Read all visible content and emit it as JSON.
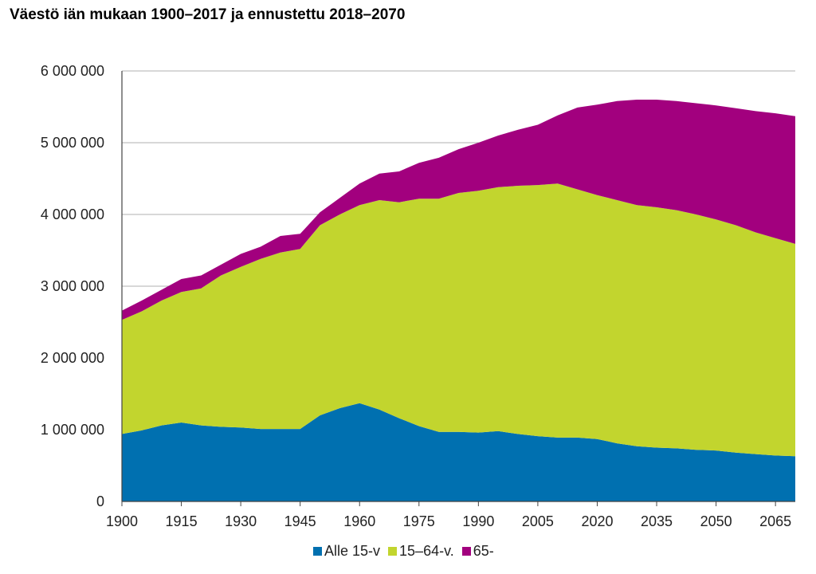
{
  "chart_data": {
    "type": "area",
    "stacked": true,
    "title": "Väestö iän mukaan 1900–2017 ja ennustettu 2018–2070",
    "xlabel": "",
    "ylabel": "",
    "xlim": [
      1900,
      2070
    ],
    "ylim": [
      0,
      6000000
    ],
    "grid": true,
    "legend_position": "bottom",
    "x_ticks": [
      "1900",
      "1915",
      "1930",
      "1945",
      "1960",
      "1975",
      "1990",
      "2005",
      "2020",
      "2035",
      "2050",
      "2065"
    ],
    "y_ticks": [
      "0",
      "1 000 000",
      "2 000 000",
      "3 000 000",
      "4 000 000",
      "5 000 000",
      "6 000 000"
    ],
    "x": [
      1900,
      1905,
      1910,
      1915,
      1920,
      1925,
      1930,
      1935,
      1940,
      1945,
      1950,
      1955,
      1960,
      1965,
      1970,
      1975,
      1980,
      1985,
      1990,
      1995,
      2000,
      2005,
      2010,
      2015,
      2020,
      2025,
      2030,
      2035,
      2040,
      2045,
      2050,
      2055,
      2060,
      2065,
      2070
    ],
    "series": [
      {
        "name": "Alle 15-v",
        "color": "#0070b0",
        "values": [
          940000,
          990000,
          1060000,
          1100000,
          1060000,
          1040000,
          1030000,
          1010000,
          1010000,
          1010000,
          1200000,
          1300000,
          1370000,
          1280000,
          1160000,
          1050000,
          970000,
          970000,
          960000,
          980000,
          940000,
          910000,
          890000,
          890000,
          870000,
          810000,
          770000,
          750000,
          740000,
          720000,
          710000,
          680000,
          660000,
          640000,
          630000
        ]
      },
      {
        "name": "15–64-v.",
        "color": "#c2d52e",
        "values": [
          1590000,
          1660000,
          1740000,
          1820000,
          1910000,
          2110000,
          2240000,
          2370000,
          2460000,
          2510000,
          2650000,
          2700000,
          2760000,
          2920000,
          3010000,
          3170000,
          3250000,
          3330000,
          3370000,
          3400000,
          3460000,
          3500000,
          3540000,
          3460000,
          3400000,
          3390000,
          3360000,
          3350000,
          3320000,
          3280000,
          3220000,
          3170000,
          3090000,
          3030000,
          2960000
        ]
      },
      {
        "name": "65-",
        "color": "#a2007e",
        "values": [
          130000,
          150000,
          150000,
          180000,
          180000,
          150000,
          180000,
          170000,
          230000,
          210000,
          180000,
          230000,
          300000,
          370000,
          430000,
          500000,
          570000,
          610000,
          670000,
          720000,
          780000,
          840000,
          950000,
          1140000,
          1260000,
          1380000,
          1470000,
          1500000,
          1520000,
          1550000,
          1590000,
          1630000,
          1690000,
          1740000,
          1780000
        ]
      }
    ]
  }
}
